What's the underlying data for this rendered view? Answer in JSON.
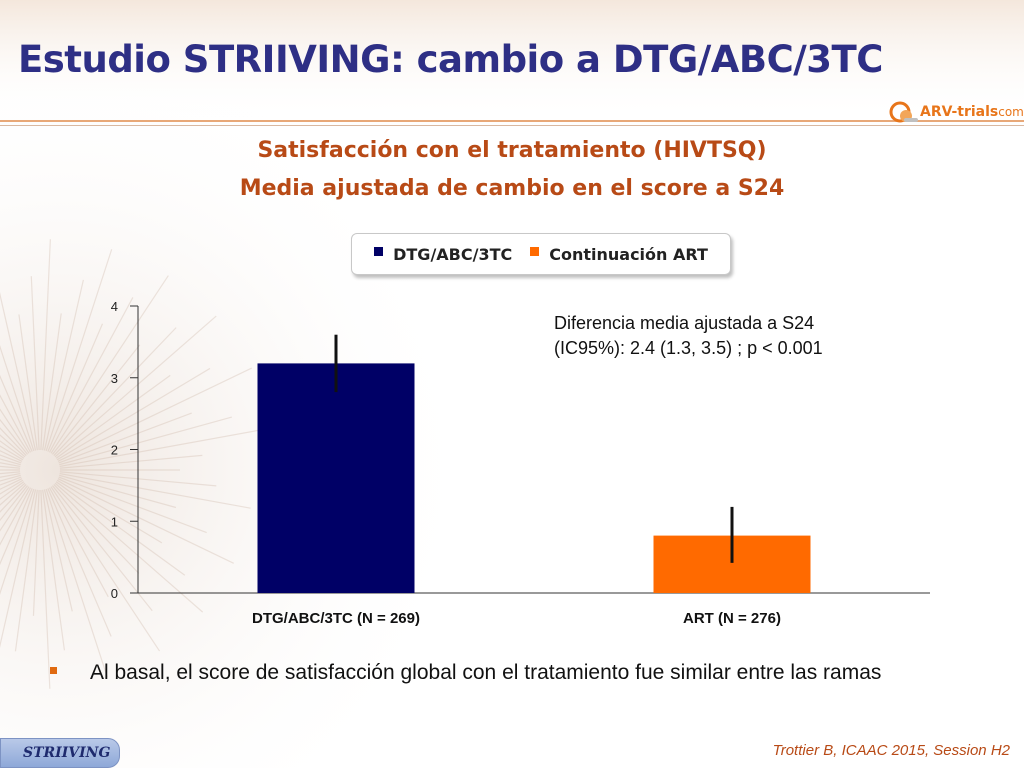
{
  "slide": {
    "title": "Estudio STRIIVING: cambio a DTG/ABC/3TC",
    "subtitle_line1": "Satisfacción con el tratamiento (HIVTSQ)",
    "subtitle_line2": "Media ajustada de cambio en el score a S24",
    "logo": {
      "name": "ARV",
      "rest": "-trials",
      "tld": "com"
    },
    "annotation_line1": "Diferencia media ajustada a S24",
    "annotation_line2": "(IC95%): 2.4 (1.3, 3.5) ; p < 0.001",
    "bullet": "Al basal, el score de satisfacción global con el tratamiento fue similar entre las ramas",
    "tag": "STRIIVING",
    "citation": "Trottier B, ICAAC 2015, Session H2"
  },
  "legend": [
    {
      "label": "DTG/ABC/3TC",
      "color": "#000066"
    },
    {
      "label": "Continuación ART",
      "color": "#ff6a00"
    }
  ],
  "colors": {
    "title": "#2e2f85",
    "subtitle": "#b84a16",
    "accent": "#e06a10"
  },
  "chart_data": {
    "type": "bar",
    "categories": [
      "DTG/ABC/3TC (N = 269)",
      "ART (N = 276)"
    ],
    "values": [
      3.2,
      0.8
    ],
    "error_low": [
      2.8,
      0.42
    ],
    "error_high": [
      3.6,
      1.2
    ],
    "colors": [
      "#000066",
      "#ff6a00"
    ],
    "ylim": [
      0,
      4
    ],
    "yticks": [
      0,
      1,
      2,
      3,
      4
    ],
    "grid": false
  }
}
